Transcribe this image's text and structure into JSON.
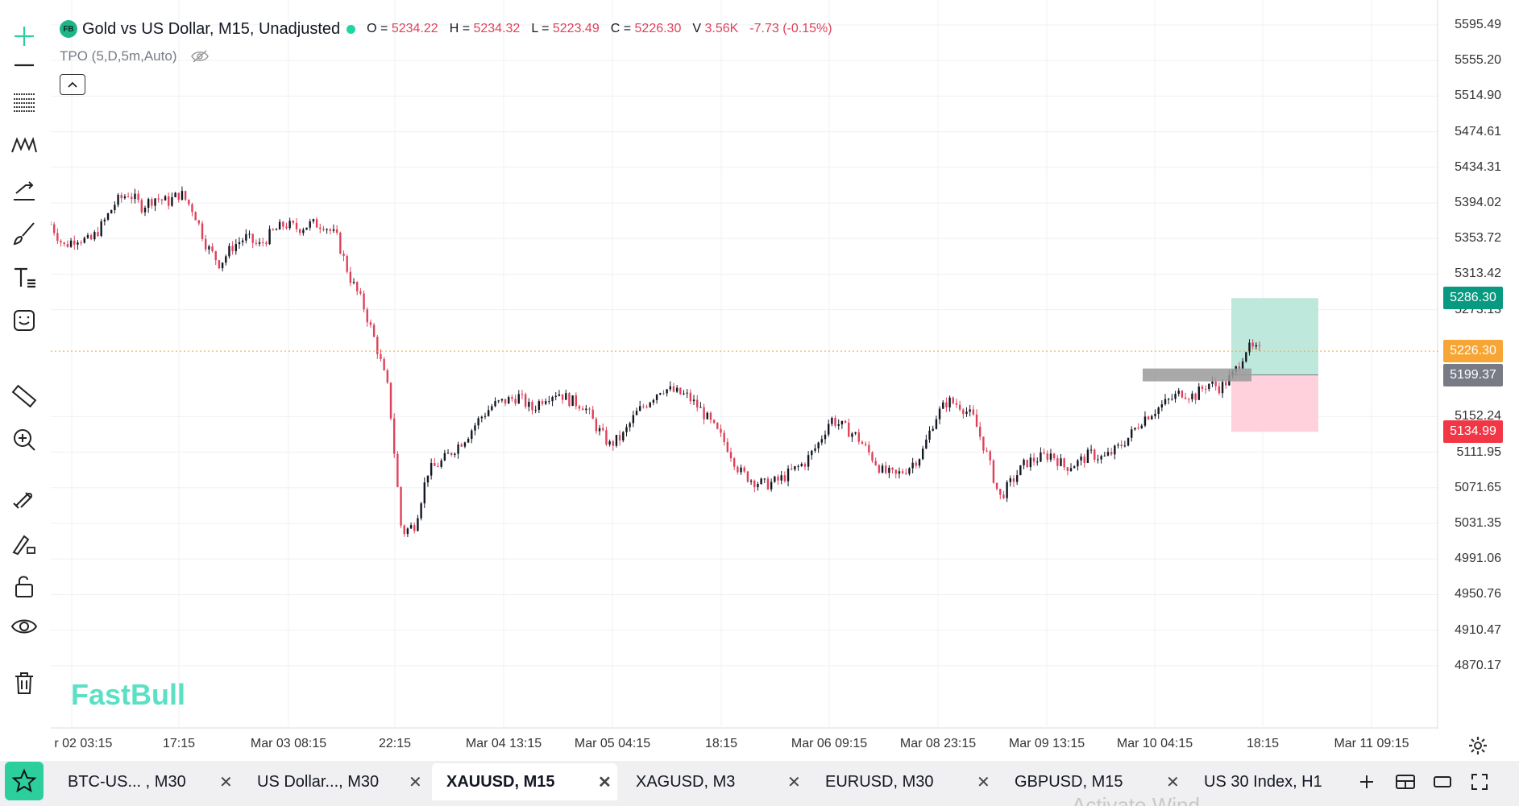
{
  "legend": {
    "badge": "FB",
    "symbol_title": "Gold vs US Dollar, M15, Unadjusted",
    "open_label": "O =",
    "open_value": "5234.22",
    "high_label": "H =",
    "high_value": "5234.32",
    "low_label": "L =",
    "low_value": "5223.49",
    "close_label": "C =",
    "close_value": "5226.30",
    "volume_label": "V",
    "volume_value": "3.56K",
    "change": "-7.73 (-0.15%)"
  },
  "indicator": {
    "label": "TPO (5,D,5m,Auto)",
    "icon": "eye-off-icon"
  },
  "watermark": "FastBull",
  "price_axis": {
    "ticks": [
      "5595.49",
      "5555.20",
      "5514.90",
      "5474.61",
      "5434.31",
      "5394.02",
      "5353.72",
      "5313.42",
      "5273.13",
      "5152.24",
      "5111.95",
      "5071.65",
      "5031.35",
      "4991.06",
      "4950.76",
      "4910.47",
      "4870.17"
    ],
    "tick_values": [
      5595.49,
      5555.2,
      5514.9,
      5474.61,
      5434.31,
      5394.02,
      5353.72,
      5313.42,
      5273.13,
      5152.24,
      5111.95,
      5071.65,
      5031.35,
      4991.06,
      4950.76,
      4910.47,
      4870.17
    ],
    "labels": [
      {
        "text": "5286.30",
        "value": 5286.3,
        "color": "#089981"
      },
      {
        "text": "5226.30",
        "value": 5226.3,
        "color": "#f7a535"
      },
      {
        "text": "5199.37",
        "value": 5199.37,
        "color": "#787b86"
      },
      {
        "text": "5134.99",
        "value": 5134.99,
        "color": "#f23645"
      }
    ]
  },
  "time_axis": {
    "ticks": [
      "r 02 03:15",
      "17:15",
      "Mar 03 08:15",
      "22:15",
      "Mar 04 13:15",
      "Mar 05 04:15",
      "18:15",
      "Mar 06 09:15",
      "Mar 08 23:15",
      "Mar 09 13:15",
      "Mar 10 04:15",
      "18:15",
      "Mar 11 09:15"
    ]
  },
  "colors": {
    "up": "#131722",
    "down": "#e0415a",
    "accent": "#2ccf9b",
    "profit_zone": "#bfe8dd",
    "loss_zone": "#ffd1dc"
  },
  "position": {
    "entry": 5199.37,
    "target": 5286.3,
    "stop": 5134.99
  },
  "chart_data": {
    "type": "candlestick",
    "title": "Gold vs US Dollar, M15, Unadjusted",
    "ylim": [
      4840,
      5610
    ],
    "x": [
      "r 02 03:15",
      "17:15",
      "Mar 03 08:15",
      "22:15",
      "Mar 04 13:15",
      "Mar 05 04:15",
      "18:15",
      "Mar 06 09:15",
      "Mar 08 23:15",
      "Mar 09 13:15",
      "Mar 10 04:15",
      "18:15"
    ],
    "close_path": [
      5370,
      5345,
      5355,
      5350,
      5370,
      5395,
      5405,
      5390,
      5400,
      5395,
      5405,
      5385,
      5345,
      5325,
      5345,
      5355,
      5345,
      5360,
      5370,
      5365,
      5370,
      5370,
      5355,
      5310,
      5280,
      5235,
      5180,
      5020,
      5030,
      5090,
      5100,
      5115,
      5130,
      5150,
      5165,
      5170,
      5175,
      5160,
      5175,
      5180,
      5170,
      5165,
      5140,
      5120,
      5130,
      5155,
      5170,
      5185,
      5180,
      5175,
      5160,
      5140,
      5120,
      5090,
      5080,
      5075,
      5080,
      5090,
      5100,
      5120,
      5150,
      5140,
      5130,
      5110,
      5090,
      5085,
      5095,
      5110,
      5150,
      5170,
      5165,
      5150,
      5110,
      5060,
      5080,
      5100,
      5105,
      5110,
      5095,
      5100,
      5110,
      5105,
      5115,
      5130,
      5150,
      5160,
      5170,
      5180,
      5175,
      5190,
      5185,
      5200,
      5230,
      5226
    ],
    "last": {
      "open": 5234.22,
      "high": 5234.32,
      "low": 5223.49,
      "close": 5226.3,
      "volume": "3.56K"
    }
  },
  "tabs": [
    {
      "label": "BTC-US... , M30",
      "active": false
    },
    {
      "label": "US Dollar..., M30",
      "active": false
    },
    {
      "label": "XAUUSD, M15",
      "active": true
    },
    {
      "label": "XAGUSD, M3",
      "active": false
    },
    {
      "label": "EURUSD, M30",
      "active": false
    },
    {
      "label": "GBPUSD, M15",
      "active": false
    },
    {
      "label": "US 30 Index, H1",
      "active": false
    }
  ],
  "tab_close_glyph": "✕",
  "faint_overlay": "Activate Wind",
  "toolbar_icons": [
    "crosshair-icon",
    "horizontal-line-icon",
    "fib-icon",
    "pattern-icon",
    "trend-arrow-icon",
    "brush-icon",
    "text-icon",
    "emoji-icon",
    "ruler-icon",
    "zoom-in-icon",
    "magnet-icon",
    "lock-draw-icon",
    "lock-icon",
    "eye-icon",
    "trash-icon"
  ]
}
